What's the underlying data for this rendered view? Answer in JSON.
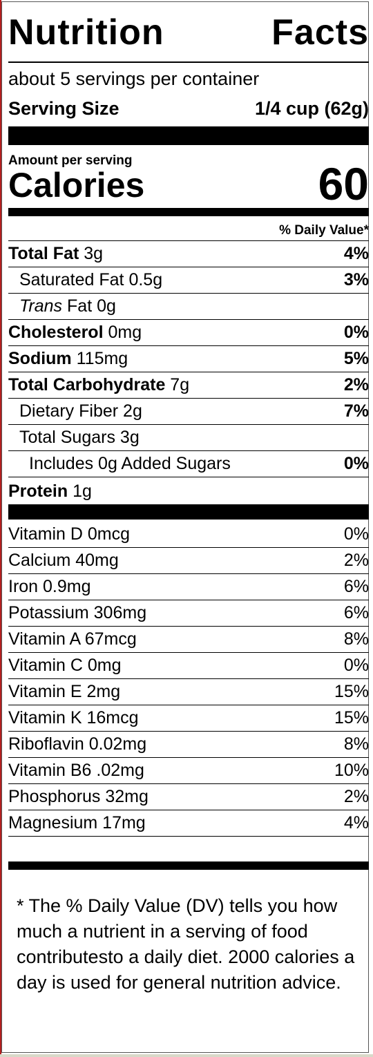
{
  "title": {
    "word1": "Nutrition",
    "word2": "Facts"
  },
  "servings_per_container": "about 5 servings per container",
  "serving_size": {
    "label": "Serving Size",
    "value": "1/4 cup (62g)"
  },
  "amount_per_serving": "Amount per serving",
  "calories": {
    "label": "Calories",
    "value": "60"
  },
  "daily_value_header": "% Daily Value*",
  "nutrients": {
    "total_fat": {
      "name": "Total Fat",
      "amount": "3g",
      "dv": "4%"
    },
    "saturated_fat": {
      "name": "Saturated Fat",
      "amount": "0.5g",
      "dv": "3%"
    },
    "trans_fat": {
      "name_italic": "Trans",
      "name": "Fat",
      "amount": "0g"
    },
    "cholesterol": {
      "name": "Cholesterol",
      "amount": "0mg",
      "dv": "0%"
    },
    "sodium": {
      "name": "Sodium",
      "amount": "115mg",
      "dv": "5%"
    },
    "total_carb": {
      "name": "Total Carbohydrate",
      "amount": "7g",
      "dv": "2%"
    },
    "fiber": {
      "name": "Dietary Fiber",
      "amount": "2g",
      "dv": "7%"
    },
    "total_sugars": {
      "name": "Total Sugars",
      "amount": "3g"
    },
    "added_sugars": {
      "text": "Includes 0g Added Sugars",
      "dv": "0%"
    },
    "protein": {
      "name": "Protein",
      "amount": "1g"
    }
  },
  "vitamins": [
    {
      "label": "Vitamin D 0mcg",
      "dv": "0%"
    },
    {
      "label": "Calcium 40mg",
      "dv": "2%"
    },
    {
      "label": "Iron 0.9mg",
      "dv": "6%"
    },
    {
      "label": "Potassium 306mg",
      "dv": "6%"
    },
    {
      "label": "Vitamin A 67mcg",
      "dv": "8%"
    },
    {
      "label": "Vitamin C 0mg",
      "dv": "0%"
    },
    {
      "label": "Vitamin E 2mg",
      "dv": "15%"
    },
    {
      "label": "Vitamin K 16mcg",
      "dv": "15%"
    },
    {
      "label": "Riboflavin 0.02mg",
      "dv": "8%"
    },
    {
      "label": "Vitamin B6 .02mg",
      "dv": "10%"
    },
    {
      "label": "Phosphorus 32mg",
      "dv": "2%"
    },
    {
      "label": "Magnesium 17mg",
      "dv": "4%"
    }
  ],
  "footnote": "* The % Daily Value (DV) tells you how much a nutrient in a serving of food contributesto a daily diet. 2000 calories a day is used for general nutrition advice."
}
